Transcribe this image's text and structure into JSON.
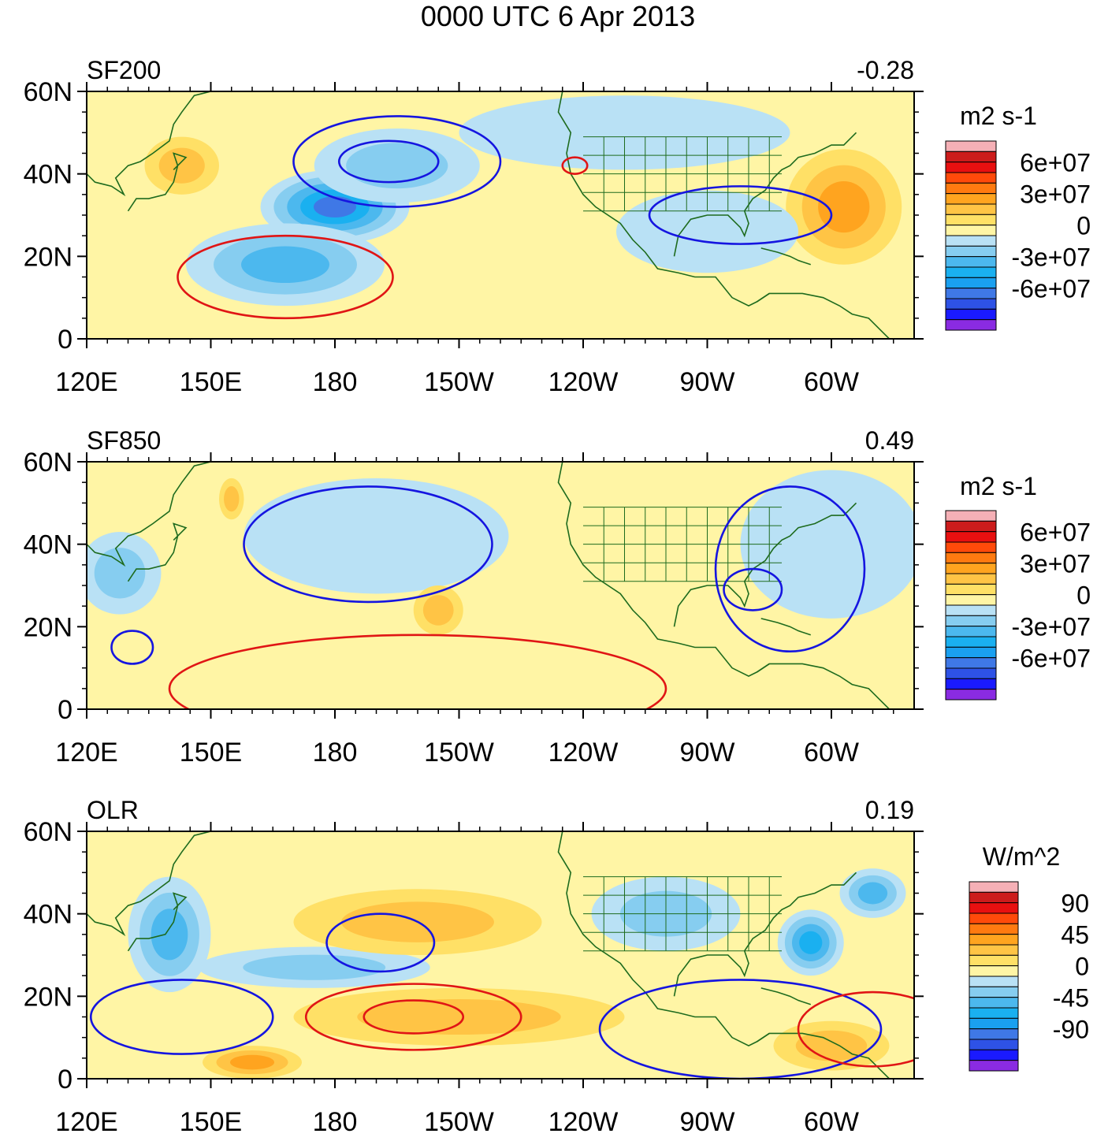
{
  "figure_title": "0000 UTC 6 Apr 2013",
  "chart_data": [
    {
      "type": "heatmap",
      "panel_label": "SF200",
      "corr_value": "-0.28",
      "x_ticks": [
        "120E",
        "150E",
        "180",
        "150W",
        "120W",
        "90W",
        "60W"
      ],
      "y_ticks": [
        "60N",
        "40N",
        "20N",
        "0"
      ],
      "xlim_deg_east": [
        120,
        320
      ],
      "ylim_deg_north": [
        0,
        60
      ],
      "colorbar": {
        "units": "m2 s-1",
        "labels": [
          "6e+07",
          "3e+07",
          "0",
          "-3e+07",
          "-6e+07"
        ],
        "levels": 12
      },
      "shade_blobs": [
        {
          "lon": 180,
          "lat": 32,
          "level": -5,
          "rlon": 18,
          "rlat": 9
        },
        {
          "lon": 168,
          "lat": 18,
          "level": -3,
          "rlon": 24,
          "rlat": 10
        },
        {
          "lon": 195,
          "lat": 42,
          "level": -2,
          "rlon": 20,
          "rlat": 9
        },
        {
          "lon": 143,
          "lat": 42,
          "level": 2,
          "rlon": 9,
          "rlat": 7
        },
        {
          "lon": 303,
          "lat": 32,
          "level": 3,
          "rlon": 14,
          "rlat": 14
        },
        {
          "lon": 250,
          "lat": 50,
          "level": -1,
          "rlon": 40,
          "rlat": 9
        },
        {
          "lon": 270,
          "lat": 26,
          "level": -1,
          "rlon": 22,
          "rlat": 10
        }
      ],
      "contour_lines": [
        {
          "color": "blue",
          "lon_center": 195,
          "lat_center": 43,
          "rlon": 25,
          "rlat": 11
        },
        {
          "color": "blue",
          "lon_center": 193,
          "lat_center": 43,
          "rlon": 12,
          "rlat": 5
        },
        {
          "color": "blue",
          "lon_center": 278,
          "lat_center": 30,
          "rlon": 22,
          "rlat": 7
        },
        {
          "color": "red",
          "lon_center": 168,
          "lat_center": 15,
          "rlon": 26,
          "rlat": 10
        },
        {
          "color": "red",
          "lon_center": 238,
          "lat_center": 42,
          "rlon": 3,
          "rlat": 2
        }
      ]
    },
    {
      "type": "heatmap",
      "panel_label": "SF850",
      "corr_value": "0.49",
      "x_ticks": [
        "120E",
        "150E",
        "180",
        "150W",
        "120W",
        "90W",
        "60W"
      ],
      "y_ticks": [
        "60N",
        "40N",
        "20N",
        "0"
      ],
      "xlim_deg_east": [
        120,
        320
      ],
      "ylim_deg_north": [
        0,
        60
      ],
      "colorbar": {
        "units": "m2 s-1",
        "labels": [
          "6e+07",
          "3e+07",
          "0",
          "-3e+07",
          "-6e+07"
        ],
        "levels": 12
      },
      "shade_blobs": [
        {
          "lon": 187,
          "lat": 40,
          "level": -2,
          "rlon": 16,
          "rlat": 8
        },
        {
          "lon": 190,
          "lat": 42,
          "level": -1,
          "rlon": 32,
          "rlat": 14
        },
        {
          "lon": 128,
          "lat": 33,
          "level": -2,
          "rlon": 10,
          "rlat": 10
        },
        {
          "lon": 300,
          "lat": 40,
          "level": -1,
          "rlon": 22,
          "rlat": 18
        },
        {
          "lon": 205,
          "lat": 24,
          "level": 2,
          "rlon": 6,
          "rlat": 6
        },
        {
          "lon": 155,
          "lat": 51,
          "level": 2,
          "rlon": 3,
          "rlat": 5
        }
      ],
      "contour_lines": [
        {
          "color": "blue",
          "lon_center": 188,
          "lat_center": 40,
          "rlon": 30,
          "rlat": 14
        },
        {
          "color": "blue",
          "lon_center": 131,
          "lat_center": 15,
          "rlon": 5,
          "rlat": 4
        },
        {
          "color": "blue",
          "lon_center": 290,
          "lat_center": 34,
          "rlon": 18,
          "rlat": 20
        },
        {
          "color": "blue",
          "lon_center": 281,
          "lat_center": 29,
          "rlon": 7,
          "rlat": 5
        },
        {
          "color": "red",
          "lon_center": 200,
          "lat_center": 5,
          "rlon": 60,
          "rlat": 13
        }
      ]
    },
    {
      "type": "heatmap",
      "panel_label": "OLR",
      "corr_value": "0.19",
      "x_ticks": [
        "120E",
        "150E",
        "180",
        "150W",
        "120W",
        "90W",
        "60W"
      ],
      "y_ticks": [
        "60N",
        "40N",
        "20N",
        "0"
      ],
      "xlim_deg_east": [
        120,
        320
      ],
      "ylim_deg_north": [
        0,
        60
      ],
      "colorbar": {
        "units": "W/m^2",
        "labels": [
          "90",
          "45",
          "0",
          "-45",
          "-90"
        ],
        "levels": 12
      },
      "shade_blobs": [
        {
          "lon": 140,
          "lat": 35,
          "level": -3,
          "rlon": 10,
          "rlat": 14
        },
        {
          "lon": 295,
          "lat": 33,
          "level": -4,
          "rlon": 8,
          "rlat": 8
        },
        {
          "lon": 310,
          "lat": 45,
          "level": -3,
          "rlon": 8,
          "rlat": 6
        },
        {
          "lon": 175,
          "lat": 27,
          "level": -2,
          "rlon": 28,
          "rlat": 5
        },
        {
          "lon": 260,
          "lat": 40,
          "level": -2,
          "rlon": 18,
          "rlat": 9
        },
        {
          "lon": 200,
          "lat": 38,
          "level": 2,
          "rlon": 30,
          "rlat": 8
        },
        {
          "lon": 210,
          "lat": 15,
          "level": 2,
          "rlon": 40,
          "rlat": 7
        },
        {
          "lon": 160,
          "lat": 4,
          "level": 3,
          "rlon": 12,
          "rlat": 4
        },
        {
          "lon": 300,
          "lat": 8,
          "level": 2,
          "rlon": 14,
          "rlat": 6
        }
      ],
      "contour_lines": [
        {
          "color": "blue",
          "lon_center": 143,
          "lat_center": 15,
          "rlon": 22,
          "rlat": 9
        },
        {
          "color": "blue",
          "lon_center": 191,
          "lat_center": 33,
          "rlon": 13,
          "rlat": 7
        },
        {
          "color": "blue",
          "lon_center": 278,
          "lat_center": 12,
          "rlon": 34,
          "rlat": 12
        },
        {
          "color": "red",
          "lon_center": 199,
          "lat_center": 15,
          "rlon": 26,
          "rlat": 8
        },
        {
          "color": "red",
          "lon_center": 199,
          "lat_center": 15,
          "rlon": 12,
          "rlat": 4
        },
        {
          "color": "red",
          "lon_center": 310,
          "lat_center": 12,
          "rlon": 18,
          "rlat": 9
        }
      ]
    }
  ],
  "palettes": {
    "levels_bottom_to_top": [
      "#8a2be2",
      "#1a1aff",
      "#2e52e6",
      "#3f78e6",
      "#1ab0f0",
      "#4cb8ee",
      "#86cdf0",
      "#b9e1f5",
      "#fff5a5",
      "#ffe066",
      "#ffc445",
      "#ffa41f",
      "#ff7a10",
      "#ff4a0a",
      "#e81010",
      "#d01818",
      "#f5b0b6"
    ],
    "bar_colors_top_to_bottom": [
      "#f5b0b6",
      "#cc1c1c",
      "#e81010",
      "#ff4a0a",
      "#ff7a10",
      "#ffa41f",
      "#ffc445",
      "#ffe066",
      "#fff5a5",
      "#b9e1f5",
      "#86cdf0",
      "#4cb8ee",
      "#1ab0f0",
      "#1aa0f0",
      "#3f78e6",
      "#2e52e6",
      "#1a1aff",
      "#8a2be2"
    ],
    "land_outline": "#1e6b1e",
    "contour_blue": "#1515e0",
    "contour_red": "#e01515"
  }
}
